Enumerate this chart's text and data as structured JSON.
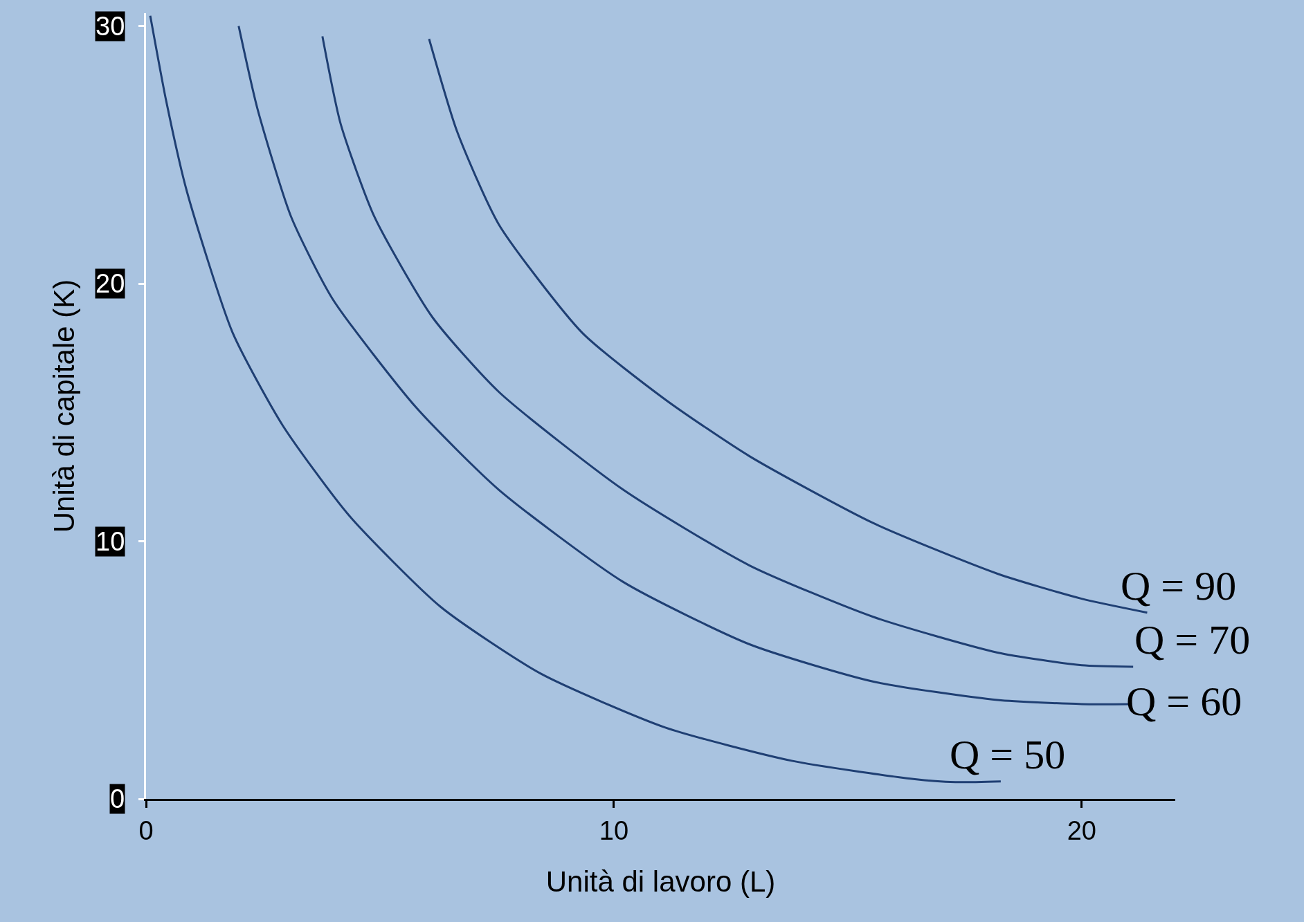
{
  "chart_data": {
    "type": "line",
    "xlabel": "Unità di lavoro (L)",
    "ylabel": "Unità di capitale (K)",
    "xlim": [
      0,
      22
    ],
    "xticks": [
      0,
      10,
      20
    ],
    "ylim": [
      0,
      30.5
    ],
    "yticks": [
      0,
      10,
      20,
      30
    ],
    "grid": false,
    "legend": false,
    "marker": "none",
    "line_style": "solid",
    "series": [
      {
        "name": "Q = 50",
        "color": "#1f3f73",
        "x": [
          0.09,
          0.43,
          0.87,
          1.85,
          2.92,
          4.34,
          6.3,
          8.43,
          11.1,
          13.8,
          16.4,
          17.3,
          18.27
        ],
        "values": [
          30.4,
          27.1,
          23.6,
          18.1,
          14.5,
          11.0,
          7.45,
          4.87,
          2.77,
          1.48,
          0.77,
          0.65,
          0.68
        ]
      },
      {
        "name": "Q = 60",
        "color": "#1f3f73",
        "x": [
          1.98,
          2.38,
          3.1,
          3.99,
          5.77,
          7.54,
          10.2,
          12.9,
          15.55,
          18.2,
          20.0,
          21.07
        ],
        "values": [
          30.0,
          26.8,
          22.6,
          19.4,
          15.2,
          12.0,
          8.42,
          6.0,
          4.55,
          3.84,
          3.68,
          3.68
        ]
      },
      {
        "name": "Q = 70",
        "color": "#1f3f73",
        "x": [
          3.77,
          4.16,
          4.88,
          6.12,
          7.54,
          10.2,
          12.9,
          15.55,
          18.2,
          20.0,
          21.1
        ],
        "values": [
          29.6,
          26.2,
          22.6,
          18.7,
          15.8,
          12.0,
          9.06,
          7.06,
          5.68,
          5.19,
          5.13
        ]
      },
      {
        "name": "Q = 90",
        "color": "#1f3f73",
        "x": [
          6.05,
          6.65,
          7.54,
          9.32,
          11.1,
          12.9,
          15.55,
          18.2,
          20.0,
          21.4
        ],
        "values": [
          29.5,
          25.9,
          22.3,
          18.1,
          15.5,
          13.3,
          10.7,
          8.74,
          7.77,
          7.23
        ]
      }
    ]
  }
}
